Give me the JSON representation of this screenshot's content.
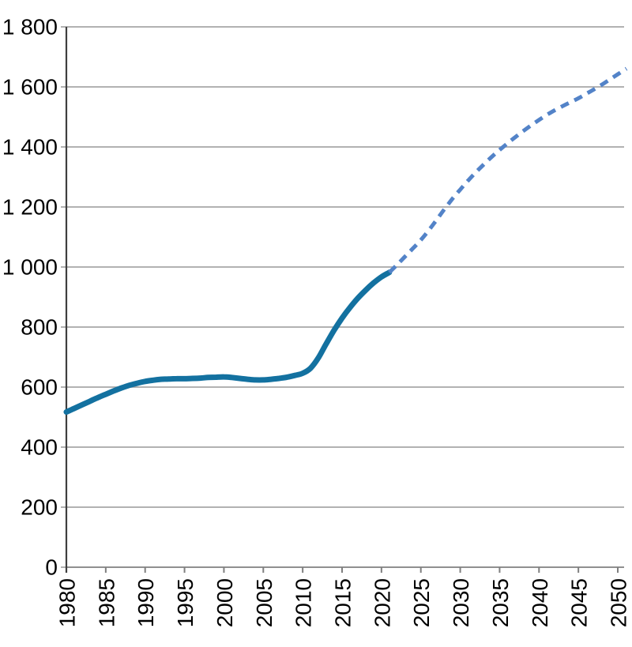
{
  "page": {
    "background": "#ffffff"
  },
  "chart_data": {
    "type": "line",
    "title": "",
    "xlabel": "",
    "ylabel": "",
    "xlim": [
      1980,
      2051.1
    ],
    "ylim": [
      0,
      1800
    ],
    "grid": true,
    "legend_position": "none",
    "colors": {
      "grid": "#a7a7a7",
      "x_axis": "#8f8f8f",
      "y_axis": "#3f3f3f",
      "tick": "#7f7f7f",
      "label_text": "#000000",
      "solid_series": "#1371a0",
      "dashed_series": "#5383c8"
    },
    "y_ticks": [
      {
        "v": 0,
        "label": "0"
      },
      {
        "v": 200,
        "label": "200"
      },
      {
        "v": 400,
        "label": "400"
      },
      {
        "v": 600,
        "label": "600"
      },
      {
        "v": 800,
        "label": "800"
      },
      {
        "v": 1000,
        "label": "1 000"
      },
      {
        "v": 1200,
        "label": "1 200"
      },
      {
        "v": 1400,
        "label": "1 400"
      },
      {
        "v": 1600,
        "label": "1 600"
      },
      {
        "v": 1800,
        "label": "1 800"
      }
    ],
    "x_ticks": [
      {
        "v": 1980,
        "label": "1980"
      },
      {
        "v": 1985,
        "label": "1985"
      },
      {
        "v": 1990,
        "label": "1990"
      },
      {
        "v": 1995,
        "label": "1995"
      },
      {
        "v": 2000,
        "label": "2000"
      },
      {
        "v": 2005,
        "label": "2005"
      },
      {
        "v": 2010,
        "label": "2010"
      },
      {
        "v": 2015,
        "label": "2015"
      },
      {
        "v": 2020,
        "label": "2020"
      },
      {
        "v": 2025,
        "label": "2025"
      },
      {
        "v": 2030,
        "label": "2030"
      },
      {
        "v": 2035,
        "label": "2035"
      },
      {
        "v": 2040,
        "label": "2040"
      },
      {
        "v": 2045,
        "label": "2045"
      },
      {
        "v": 2050,
        "label": "2050"
      }
    ],
    "series": [
      {
        "name": "solid-line",
        "style": "solid",
        "color": "#1371a0",
        "stroke_width": 7,
        "points": [
          [
            1980,
            517
          ],
          [
            1981,
            529
          ],
          [
            1982,
            541
          ],
          [
            1983,
            553
          ],
          [
            1984,
            565
          ],
          [
            1985,
            576
          ],
          [
            1986,
            587
          ],
          [
            1987,
            597
          ],
          [
            1988,
            606
          ],
          [
            1989,
            613
          ],
          [
            1990,
            619
          ],
          [
            1991,
            623
          ],
          [
            1992,
            626
          ],
          [
            1993,
            627
          ],
          [
            1994,
            628
          ],
          [
            1995,
            628
          ],
          [
            1996,
            629
          ],
          [
            1997,
            630
          ],
          [
            1998,
            632
          ],
          [
            1999,
            633
          ],
          [
            2000,
            634
          ],
          [
            2001,
            632
          ],
          [
            2002,
            629
          ],
          [
            2003,
            626
          ],
          [
            2004,
            624
          ],
          [
            2005,
            624
          ],
          [
            2006,
            626
          ],
          [
            2007,
            629
          ],
          [
            2008,
            633
          ],
          [
            2009,
            639
          ],
          [
            2010,
            646
          ],
          [
            2011,
            663
          ],
          [
            2012,
            698
          ],
          [
            2013,
            745
          ],
          [
            2014,
            790
          ],
          [
            2015,
            830
          ],
          [
            2016,
            865
          ],
          [
            2017,
            896
          ],
          [
            2018,
            923
          ],
          [
            2019,
            947
          ],
          [
            2020,
            967
          ],
          [
            2021,
            982
          ]
        ]
      },
      {
        "name": "dashed-line",
        "style": "dashed",
        "color": "#5383c8",
        "stroke_width": 5,
        "dash": [
          11,
          8
        ],
        "extend_to_xlim": true,
        "points": [
          [
            2021,
            982
          ],
          [
            2022,
            1008
          ],
          [
            2023,
            1035
          ],
          [
            2024,
            1062
          ],
          [
            2025,
            1090
          ],
          [
            2026,
            1122
          ],
          [
            2027,
            1157
          ],
          [
            2028,
            1193
          ],
          [
            2029,
            1227
          ],
          [
            2030,
            1258
          ],
          [
            2031,
            1288
          ],
          [
            2032,
            1316
          ],
          [
            2033,
            1342
          ],
          [
            2034,
            1367
          ],
          [
            2035,
            1390
          ],
          [
            2036,
            1412
          ],
          [
            2037,
            1433
          ],
          [
            2038,
            1453
          ],
          [
            2039,
            1472
          ],
          [
            2040,
            1490
          ],
          [
            2041,
            1507
          ],
          [
            2042,
            1522
          ],
          [
            2043,
            1536
          ],
          [
            2044,
            1549
          ],
          [
            2045,
            1562
          ],
          [
            2046,
            1577
          ],
          [
            2047,
            1592
          ],
          [
            2048,
            1608
          ],
          [
            2049,
            1625
          ],
          [
            2050,
            1642
          ]
        ]
      }
    ]
  }
}
